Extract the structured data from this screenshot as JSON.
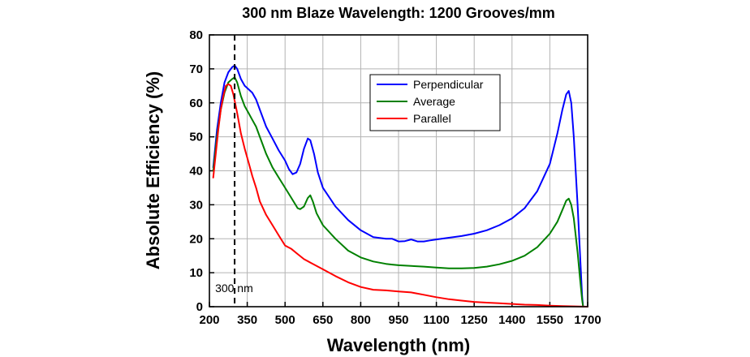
{
  "chart_data": {
    "type": "line",
    "title": "300 nm Blaze Wavelength: 1200 Grooves/mm",
    "xlabel": "Wavelength (nm)",
    "ylabel": "Absolute Efficiency (%)",
    "xlim": [
      200,
      1700
    ],
    "ylim": [
      0,
      80
    ],
    "x_ticks": [
      200,
      350,
      500,
      650,
      800,
      950,
      1100,
      1250,
      1400,
      1550,
      1700
    ],
    "y_ticks": [
      0,
      10,
      20,
      30,
      40,
      50,
      60,
      70,
      80
    ],
    "x_tick_labels": [
      "200",
      "350",
      "500",
      "650",
      "800",
      "950",
      "1100",
      "1250",
      "1400",
      "1550",
      "1700"
    ],
    "y_tick_labels": [
      "0",
      "10",
      "20",
      "30",
      "40",
      "50",
      "60",
      "70",
      "80"
    ],
    "grid": true,
    "legend_position": "top-center",
    "annotations": [
      {
        "text": "300 nm",
        "x": 300
      }
    ],
    "series": [
      {
        "name": "Perpendicular",
        "color": "#0000ff",
        "points": [
          [
            215,
            41
          ],
          [
            230,
            52
          ],
          [
            245,
            60
          ],
          [
            260,
            66
          ],
          [
            275,
            69
          ],
          [
            290,
            70.5
          ],
          [
            300,
            71
          ],
          [
            310,
            70
          ],
          [
            325,
            67
          ],
          [
            340,
            65
          ],
          [
            355,
            64
          ],
          [
            370,
            63
          ],
          [
            385,
            61
          ],
          [
            400,
            58
          ],
          [
            425,
            53
          ],
          [
            450,
            49.5
          ],
          [
            475,
            46
          ],
          [
            500,
            43
          ],
          [
            515,
            40.5
          ],
          [
            530,
            39
          ],
          [
            545,
            39.5
          ],
          [
            560,
            42
          ],
          [
            575,
            46.5
          ],
          [
            590,
            49.5
          ],
          [
            600,
            49
          ],
          [
            615,
            45
          ],
          [
            630,
            39.5
          ],
          [
            650,
            35
          ],
          [
            700,
            29.5
          ],
          [
            750,
            25.5
          ],
          [
            800,
            22.5
          ],
          [
            850,
            20.5
          ],
          [
            900,
            20
          ],
          [
            925,
            20
          ],
          [
            950,
            19.2
          ],
          [
            975,
            19.3
          ],
          [
            1000,
            19.8
          ],
          [
            1025,
            19.2
          ],
          [
            1050,
            19.2
          ],
          [
            1075,
            19.5
          ],
          [
            1100,
            19.8
          ],
          [
            1150,
            20.3
          ],
          [
            1200,
            20.8
          ],
          [
            1250,
            21.5
          ],
          [
            1300,
            22.5
          ],
          [
            1350,
            24
          ],
          [
            1400,
            26
          ],
          [
            1450,
            29
          ],
          [
            1500,
            34
          ],
          [
            1550,
            42
          ],
          [
            1580,
            51
          ],
          [
            1600,
            58
          ],
          [
            1615,
            62.5
          ],
          [
            1625,
            63.5
          ],
          [
            1635,
            60
          ],
          [
            1645,
            50
          ],
          [
            1660,
            30
          ],
          [
            1670,
            15
          ],
          [
            1678,
            3
          ],
          [
            1682,
            0
          ]
        ]
      },
      {
        "name": "Average",
        "color": "#008000",
        "points": [
          [
            215,
            40
          ],
          [
            230,
            50
          ],
          [
            245,
            58
          ],
          [
            260,
            63
          ],
          [
            275,
            66
          ],
          [
            290,
            67
          ],
          [
            300,
            67.5
          ],
          [
            310,
            66
          ],
          [
            325,
            62
          ],
          [
            340,
            59
          ],
          [
            355,
            57
          ],
          [
            370,
            55
          ],
          [
            385,
            53
          ],
          [
            400,
            50
          ],
          [
            425,
            45
          ],
          [
            450,
            41
          ],
          [
            475,
            38
          ],
          [
            500,
            35
          ],
          [
            525,
            32
          ],
          [
            550,
            29
          ],
          [
            560,
            28.7
          ],
          [
            575,
            29.5
          ],
          [
            590,
            32
          ],
          [
            600,
            32.8
          ],
          [
            610,
            31
          ],
          [
            625,
            27.5
          ],
          [
            650,
            24
          ],
          [
            700,
            20
          ],
          [
            750,
            16.5
          ],
          [
            800,
            14.5
          ],
          [
            850,
            13.3
          ],
          [
            900,
            12.6
          ],
          [
            925,
            12.4
          ],
          [
            950,
            12.2
          ],
          [
            1000,
            12
          ],
          [
            1050,
            11.8
          ],
          [
            1100,
            11.5
          ],
          [
            1150,
            11.3
          ],
          [
            1200,
            11.3
          ],
          [
            1250,
            11.4
          ],
          [
            1300,
            11.8
          ],
          [
            1350,
            12.5
          ],
          [
            1400,
            13.5
          ],
          [
            1450,
            15
          ],
          [
            1500,
            17.5
          ],
          [
            1550,
            21.5
          ],
          [
            1580,
            25
          ],
          [
            1600,
            28.5
          ],
          [
            1615,
            31.2
          ],
          [
            1625,
            31.8
          ],
          [
            1635,
            30
          ],
          [
            1645,
            26
          ],
          [
            1660,
            16
          ],
          [
            1670,
            8
          ],
          [
            1678,
            2
          ],
          [
            1682,
            0
          ]
        ]
      },
      {
        "name": "Parallel",
        "color": "#ff0000",
        "points": [
          [
            215,
            38
          ],
          [
            225,
            45
          ],
          [
            235,
            52
          ],
          [
            245,
            58
          ],
          [
            255,
            62
          ],
          [
            265,
            65
          ],
          [
            275,
            65.5
          ],
          [
            285,
            65
          ],
          [
            295,
            62.5
          ],
          [
            310,
            57
          ],
          [
            325,
            51
          ],
          [
            340,
            46.5
          ],
          [
            355,
            42.5
          ],
          [
            370,
            38.5
          ],
          [
            385,
            35
          ],
          [
            400,
            31
          ],
          [
            425,
            27
          ],
          [
            450,
            24
          ],
          [
            475,
            21
          ],
          [
            500,
            18
          ],
          [
            525,
            17
          ],
          [
            550,
            15.5
          ],
          [
            575,
            14
          ],
          [
            600,
            13
          ],
          [
            650,
            11
          ],
          [
            700,
            9
          ],
          [
            750,
            7.2
          ],
          [
            800,
            5.8
          ],
          [
            850,
            5
          ],
          [
            900,
            4.8
          ],
          [
            950,
            4.5
          ],
          [
            1000,
            4.2
          ],
          [
            1050,
            3.5
          ],
          [
            1100,
            2.8
          ],
          [
            1150,
            2.2
          ],
          [
            1200,
            1.8
          ],
          [
            1250,
            1.4
          ],
          [
            1300,
            1.2
          ],
          [
            1350,
            1
          ],
          [
            1400,
            0.8
          ],
          [
            1450,
            0.6
          ],
          [
            1500,
            0.5
          ],
          [
            1550,
            0.3
          ],
          [
            1600,
            0.2
          ],
          [
            1650,
            0.1
          ],
          [
            1700,
            0
          ]
        ]
      }
    ]
  }
}
